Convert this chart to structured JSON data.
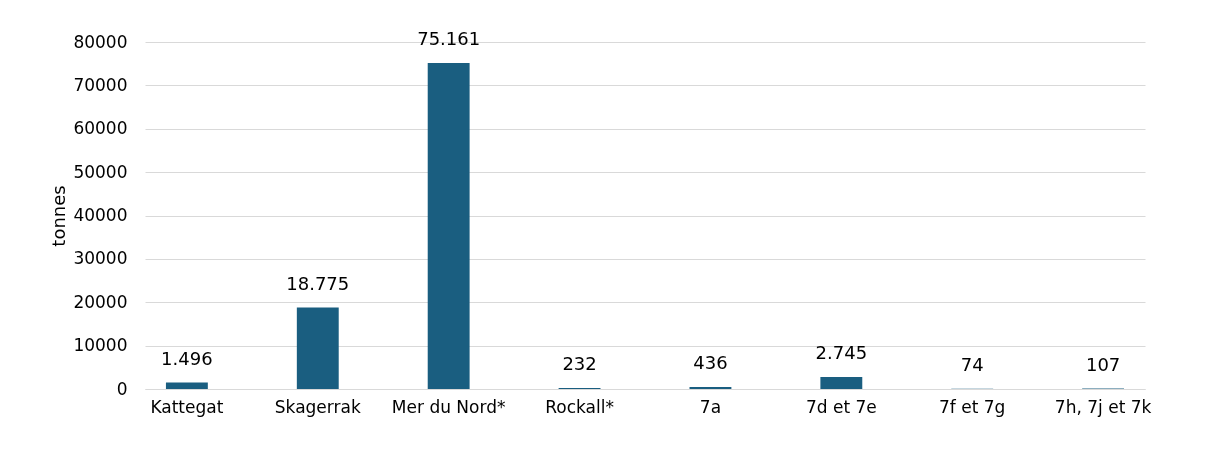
{
  "chart_data": {
    "type": "bar",
    "ylabel": "tonnes",
    "categories": [
      "Kattegat",
      "Skagerrak",
      "Mer du Nord*",
      "Rockall*",
      "7a",
      "7d et 7e",
      "7f et 7g",
      "7h, 7j et 7k"
    ],
    "values": [
      1496,
      18775,
      75161,
      232,
      436,
      2745,
      74,
      107
    ],
    "value_labels": [
      "1.496",
      "18.775",
      "75.161",
      "232",
      "436",
      "2.745",
      "74",
      "107"
    ],
    "color": "#1a5e80",
    "ylim": [
      0,
      80000
    ],
    "yticks": [
      0,
      10000,
      20000,
      30000,
      40000,
      50000,
      60000,
      70000,
      80000
    ],
    "grid": "y"
  }
}
